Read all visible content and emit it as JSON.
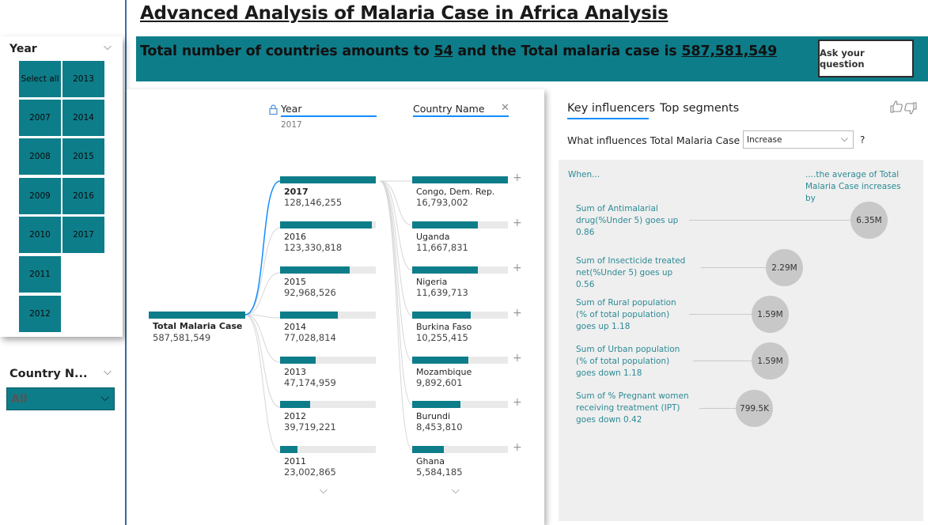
{
  "header": {
    "title": "Advanced Analysis of Malaria Case in Africa Analysis",
    "banner_pre": "Total number of countries amounts to ",
    "banner_countries": "54",
    "banner_mid": " and the Total malaria case is ",
    "banner_total": "587,581,549",
    "ask_button": "Ask your question"
  },
  "year_slicer": {
    "label": "Year",
    "tiles": [
      "Select all",
      "2013",
      "2007",
      "2014",
      "2008",
      "2015",
      "2009",
      "2016",
      "2010",
      "2017",
      "2011",
      "2012"
    ]
  },
  "country_slicer": {
    "label": "Country N...",
    "value": "All"
  },
  "decomposition": {
    "year_header": "Year",
    "year_filter": "2017",
    "country_header": "Country Name",
    "root_label": "Total Malaria Case",
    "root_value": "587,581,549",
    "years": [
      {
        "label": "2017",
        "value": "128,146,255",
        "frac": 1.0
      },
      {
        "label": "2016",
        "value": "123,330,818",
        "frac": 0.96
      },
      {
        "label": "2015",
        "value": "92,968,526",
        "frac": 0.73
      },
      {
        "label": "2014",
        "value": "77,028,814",
        "frac": 0.6
      },
      {
        "label": "2013",
        "value": "47,174,959",
        "frac": 0.37
      },
      {
        "label": "2012",
        "value": "39,719,221",
        "frac": 0.31
      },
      {
        "label": "2011",
        "value": "23,002,865",
        "frac": 0.18
      }
    ],
    "countries": [
      {
        "label": "Congo, Dem. Rep.",
        "value": "16,793,002",
        "frac": 1.0
      },
      {
        "label": "Uganda",
        "value": "11,667,831",
        "frac": 0.69
      },
      {
        "label": "Nigeria",
        "value": "11,639,713",
        "frac": 0.69
      },
      {
        "label": "Burkina Faso",
        "value": "10,255,415",
        "frac": 0.61
      },
      {
        "label": "Mozambique",
        "value": "9,892,601",
        "frac": 0.59
      },
      {
        "label": "Burundi",
        "value": "8,453,810",
        "frac": 0.5
      },
      {
        "label": "Ghana",
        "value": "5,584,185",
        "frac": 0.33
      }
    ]
  },
  "key_influencers": {
    "tab_active": "Key influencers",
    "tab_other": "Top segments",
    "question_pre": "What influences Total Malaria Case to",
    "question_value": "Increase",
    "question_post": "?",
    "when_label": "When...",
    "avg_label": "....the average of Total Malaria Case increases by",
    "rows": [
      {
        "text": "Sum of Antimalarial drug(%Under 5) goes up 0.86",
        "value": "6.35M"
      },
      {
        "text": "Sum of Insecticide treated net(%Under 5) goes up 0.56",
        "value": "2.29M"
      },
      {
        "text": "Sum of Rural population (% of total population) goes up 1.18",
        "value": "1.59M"
      },
      {
        "text": "Sum of Urban population (% of total population) goes down 1.18",
        "value": "1.59M"
      },
      {
        "text": "Sum of % Pregnant women receiving treatment (IPT) goes down 0.42",
        "value": "799.5K"
      }
    ]
  }
}
